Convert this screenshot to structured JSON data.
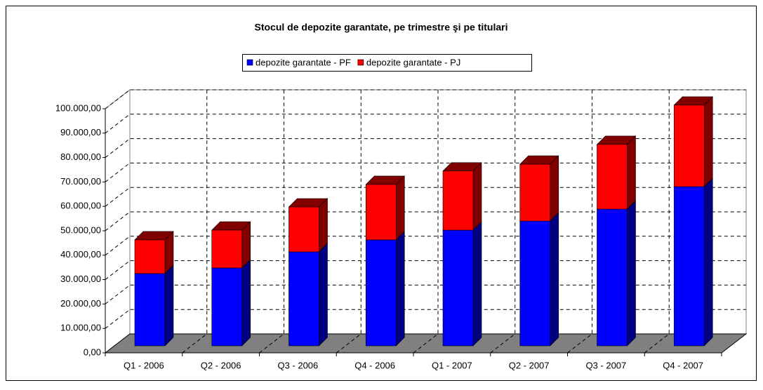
{
  "chart_data": {
    "type": "bar3d-stacked",
    "title": "Stocul de depozite garantate, pe trimestre şi pe titulari",
    "categories": [
      "Q1 - 2006",
      "Q2 - 2006",
      "Q3 - 2006",
      "Q4 - 2006",
      "Q1 - 2007",
      "Q2 - 2007",
      "Q3 - 2007",
      "Q4 - 2007"
    ],
    "series": [
      {
        "name": "depozite garantate - PF",
        "color": "#0000ff",
        "side_color": "#000080",
        "values": [
          29600,
          31900,
          38500,
          43400,
          47400,
          51100,
          56000,
          65200
        ]
      },
      {
        "name": "depozite garantate - PJ",
        "color": "#ff0000",
        "side_color": "#800000",
        "values": [
          13800,
          15500,
          18400,
          22700,
          24200,
          23300,
          26500,
          33400
        ]
      }
    ],
    "ylim": [
      0,
      100000
    ],
    "yticks": [
      {
        "value": 0,
        "label": "0,00"
      },
      {
        "value": 10000,
        "label": "10.000,00"
      },
      {
        "value": 20000,
        "label": "20.000,00"
      },
      {
        "value": 30000,
        "label": "30.000,00"
      },
      {
        "value": 40000,
        "label": "40.000,00"
      },
      {
        "value": 50000,
        "label": "50.000,00"
      },
      {
        "value": 60000,
        "label": "60.000,00"
      },
      {
        "value": 70000,
        "label": "70.000,00"
      },
      {
        "value": 80000,
        "label": "80.000,00"
      },
      {
        "value": 90000,
        "label": "90.000,00"
      },
      {
        "value": 100000,
        "label": "100.000,00"
      }
    ],
    "grid": true,
    "legend": "top"
  }
}
